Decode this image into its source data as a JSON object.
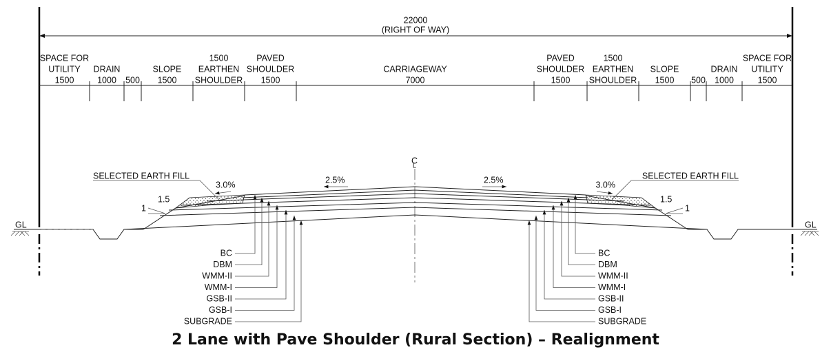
{
  "dimension": {
    "total": "22000",
    "label": "(RIGHT OF WAY)"
  },
  "segments": [
    {
      "lines": [
        "SPACE FOR",
        "UTILITY",
        "1500"
      ]
    },
    {
      "lines": [
        "DRAIN",
        "1000"
      ]
    },
    {
      "lines": [
        "500"
      ]
    },
    {
      "lines": [
        "SLOPE",
        "1500"
      ]
    },
    {
      "lines": [
        "1500",
        "EARTHEN",
        "SHOULDER"
      ]
    },
    {
      "lines": [
        "PAVED",
        "SHOULDER",
        "1500"
      ]
    },
    {
      "lines": [
        "CARRIAGEWAY",
        "7000"
      ]
    },
    {
      "lines": [
        "PAVED",
        "SHOULDER",
        "1500"
      ]
    },
    {
      "lines": [
        "1500",
        "EARTHEN",
        "SHOULDER"
      ]
    },
    {
      "lines": [
        "SLOPE",
        "1500"
      ]
    },
    {
      "lines": [
        "500"
      ]
    },
    {
      "lines": [
        "DRAIN",
        "1000"
      ]
    },
    {
      "lines": [
        "SPACE FOR",
        "UTILITY",
        "1500"
      ]
    }
  ],
  "layers": [
    "BC",
    "DBM",
    "WMM-II",
    "WMM-I",
    "GSB-II",
    "GSB-I",
    "SUBGRADE"
  ],
  "annotations": {
    "fill_left": "SELECTED EARTH FILL",
    "fill_right": "SELECTED EARTH FILL",
    "shoulder_slope_left": "3.0%",
    "shoulder_slope_right": "3.0%",
    "camber_left": "2.5%",
    "camber_right": "2.5%",
    "side_slope_h_left": "1.5",
    "side_slope_v_left": "1",
    "side_slope_h_right": "1.5",
    "side_slope_v_right": "1",
    "gl_left": "GL",
    "gl_right": "GL",
    "centerline_c": "C",
    "centerline_l": "L"
  },
  "title": "2 Lane with Pave Shoulder (Rural Section) – Realignment"
}
